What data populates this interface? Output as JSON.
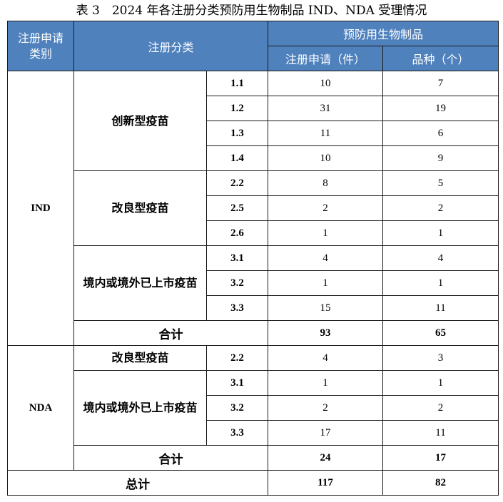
{
  "caption": "表 3　2024 年各注册分类预防用生物制品 IND、NDA 受理情况",
  "header": {
    "col1": "注册申请类别",
    "col2": "注册分类",
    "group": "预防用生物制品",
    "col4": "注册申请（件）",
    "col5": "品种（个）"
  },
  "ind": {
    "label": "IND",
    "cat_innovative": "创新型疫苗",
    "cat_improved": "改良型疫苗",
    "cat_marketed": "境内或境外已上市疫苗",
    "rows": [
      {
        "code": "1.1",
        "apps": "10",
        "varieties": "7"
      },
      {
        "code": "1.2",
        "apps": "31",
        "varieties": "19"
      },
      {
        "code": "1.3",
        "apps": "11",
        "varieties": "6"
      },
      {
        "code": "1.4",
        "apps": "10",
        "varieties": "9"
      },
      {
        "code": "2.2",
        "apps": "8",
        "varieties": "5"
      },
      {
        "code": "2.5",
        "apps": "2",
        "varieties": "2"
      },
      {
        "code": "2.6",
        "apps": "1",
        "varieties": "1"
      },
      {
        "code": "3.1",
        "apps": "4",
        "varieties": "4"
      },
      {
        "code": "3.2",
        "apps": "1",
        "varieties": "1"
      },
      {
        "code": "3.3",
        "apps": "15",
        "varieties": "11"
      }
    ],
    "subtotal_label": "合计",
    "subtotal_apps": "93",
    "subtotal_varieties": "65"
  },
  "nda": {
    "label": "NDA",
    "cat_improved": "改良型疫苗",
    "cat_marketed": "境内或境外已上市疫苗",
    "rows": [
      {
        "code": "2.2",
        "apps": "4",
        "varieties": "3"
      },
      {
        "code": "3.1",
        "apps": "1",
        "varieties": "1"
      },
      {
        "code": "3.2",
        "apps": "2",
        "varieties": "2"
      },
      {
        "code": "3.3",
        "apps": "17",
        "varieties": "11"
      }
    ],
    "subtotal_label": "合计",
    "subtotal_apps": "24",
    "subtotal_varieties": "17"
  },
  "total": {
    "label": "总计",
    "apps": "117",
    "varieties": "82"
  }
}
